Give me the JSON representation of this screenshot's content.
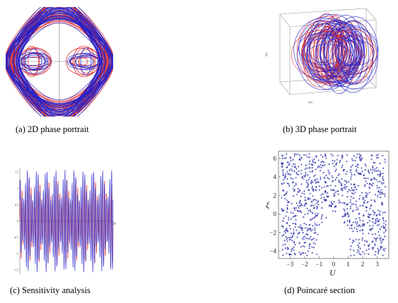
{
  "captions": {
    "a": "(a)  2D phase portrait",
    "b": "(b)  3D phase portrait",
    "c": "(c)  Sensitivity analysis",
    "d": "(d)  Poincaré section"
  },
  "colors": {
    "red": "#dd2222",
    "blue": "#2222cc"
  },
  "chart_data": [
    {
      "type": "line",
      "panel": "a",
      "series": [
        {
          "color": "#dd2222"
        },
        {
          "color": "#2222cc"
        }
      ]
    },
    {
      "type": "line",
      "panel": "b",
      "axis_labels": {
        "x": "ν(t)",
        "z": "ν(t)"
      },
      "series": [
        {
          "color": "#dd2222"
        },
        {
          "color": "#2222cc"
        }
      ]
    },
    {
      "type": "line",
      "panel": "c",
      "y_ticks": [
        "1.5",
        "1",
        "0.5",
        "0",
        "-0.5",
        "-1",
        "-1.5"
      ],
      "x_end_label": "20",
      "series": [
        {
          "color": "#dd2222"
        },
        {
          "color": "#2222cc"
        }
      ]
    },
    {
      "type": "scatter",
      "panel": "d",
      "xlabel": "U",
      "ylabel": "ξ",
      "xlim": [
        -3.8,
        3.8
      ],
      "ylim": [
        -4.8,
        6.8
      ],
      "x_ticks": [
        "−3",
        "−2",
        "−1",
        "0",
        "1",
        "2",
        "3"
      ],
      "y_ticks": [
        "−4",
        "−2",
        "0",
        "2",
        "4",
        "6"
      ],
      "marker": "+",
      "color": "#2a2aaa"
    }
  ]
}
